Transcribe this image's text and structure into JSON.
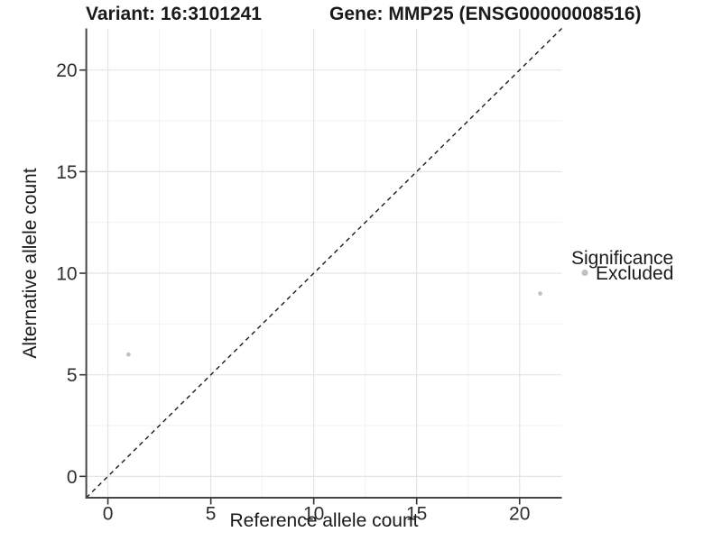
{
  "titles": {
    "variant": "Variant: 16:3101241",
    "gene": "Gene: MMP25 (ENSG00000008516)"
  },
  "axes": {
    "x": {
      "label": "Reference allele count",
      "tick_labels": [
        "0",
        "5",
        "10",
        "15",
        "20"
      ]
    },
    "y": {
      "label": "Alternative allele count",
      "tick_labels": [
        "0",
        "5",
        "10",
        "15",
        "20"
      ]
    }
  },
  "legend": {
    "title": "Significance",
    "items": [
      {
        "label": "Excluded",
        "marker_color": "#c2c2c2"
      }
    ]
  },
  "colors": {
    "background": "#ffffff",
    "axis_line": "#464646",
    "grid_major": "#e4e4e4",
    "grid_minor": "#f2f2f2",
    "tick_mark": "#333333",
    "identity_line": "#1a1a1a",
    "point": "#c2c2c2"
  },
  "chart_data": {
    "type": "scatter",
    "title": "Variant: 16:3101241 — Gene: MMP25 (ENSG00000008516)",
    "xlabel": "Reference allele count",
    "ylabel": "Alternative allele count",
    "xlim": [
      -1.05,
      22.05
    ],
    "ylim": [
      -1.05,
      22.05
    ],
    "x_major_ticks": [
      0,
      5,
      10,
      15,
      20
    ],
    "y_major_ticks": [
      0,
      5,
      10,
      15,
      20
    ],
    "x_minor_ticks": [
      2.5,
      7.5,
      12.5,
      17.5
    ],
    "y_minor_ticks": [
      2.5,
      7.5,
      12.5,
      17.5
    ],
    "grid": true,
    "legend_position": "right",
    "reference_line": {
      "kind": "identity",
      "slope": 1,
      "intercept": 0,
      "style": "dashed"
    },
    "series": [
      {
        "name": "Excluded",
        "color": "#c2c2c2",
        "points": [
          [
            1,
            6
          ],
          [
            21,
            9
          ]
        ]
      }
    ]
  }
}
